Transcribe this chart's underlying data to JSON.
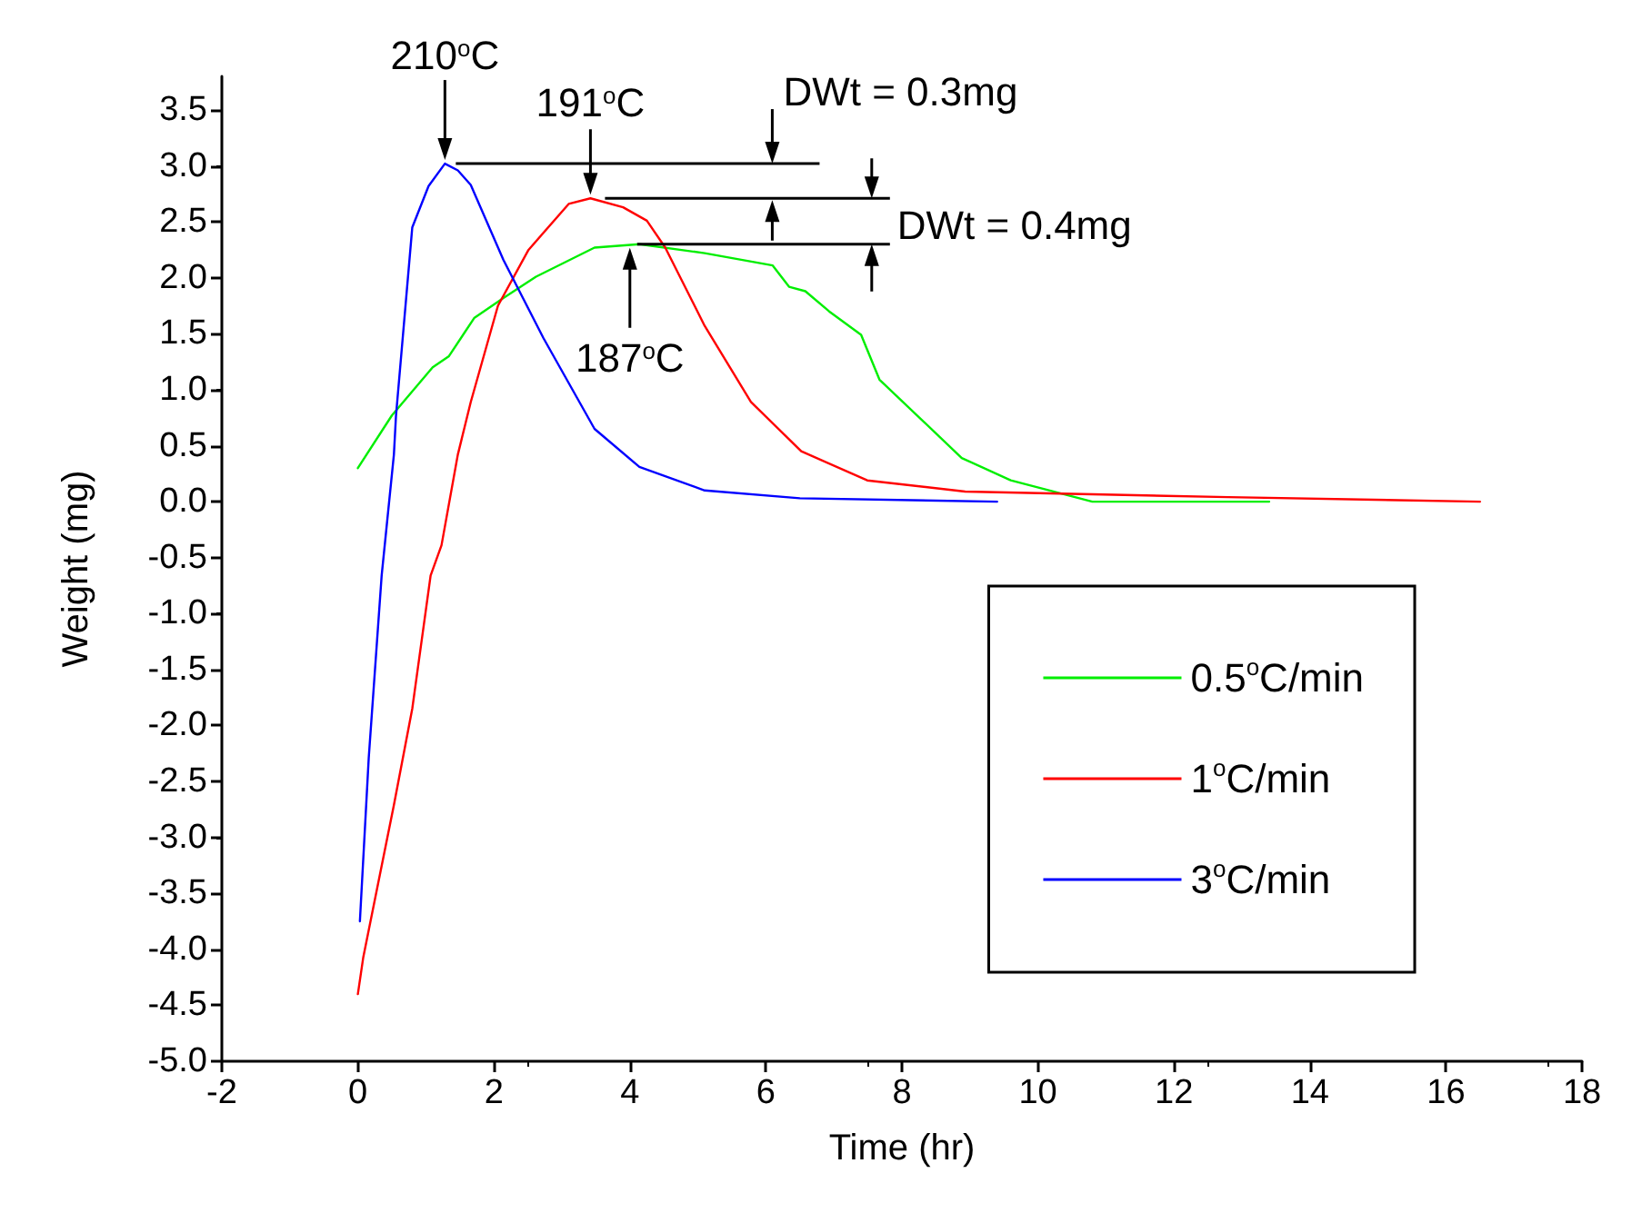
{
  "chart_data": {
    "type": "line",
    "xlabel": "Time (hr)",
    "ylabel": "Weight (mg)",
    "xlim": [
      -2,
      18
    ],
    "xticks": [
      -2,
      0,
      2,
      4,
      6,
      8,
      10,
      12,
      14,
      16,
      18
    ],
    "ylim": [
      -5,
      3.8
    ],
    "yticks": [
      {
        "value": -5,
        "label": "-5.0"
      },
      -4.5,
      {
        "value": -4,
        "label": "-4.0"
      },
      -3.5,
      {
        "value": -3,
        "label": "-3.0"
      },
      -2.5,
      {
        "value": -2,
        "label": "-2.0"
      },
      -1.5,
      {
        "value": -1,
        "label": "-1.0"
      },
      -0.5,
      {
        "value": 0,
        "label": "0.0"
      },
      0.5,
      {
        "value": 1,
        "label": "1.0"
      },
      1.5,
      {
        "value": 2,
        "label": "2.0"
      },
      2.5,
      {
        "value": 3,
        "label": "3.0"
      },
      3.5
    ],
    "grid": false,
    "legend": "bottom right",
    "marker": "none",
    "line_style": "solid",
    "series": [
      {
        "name": "0.5$^{o}$C/min",
        "color": "#00ee00",
        "x": [
          0,
          0.5,
          1.1,
          1.34,
          1.71,
          2.14,
          2.62,
          3.48,
          4.14,
          5.1,
          6.1,
          6.34,
          6.58,
          6.93,
          7.4,
          7.67,
          8.88,
          9.6,
          10.8,
          13.4
        ],
        "values": [
          0.3,
          0.77,
          1.2,
          1.3,
          1.64,
          1.82,
          2.01,
          2.27,
          2.3,
          2.22,
          2.11,
          1.92,
          1.88,
          1.7,
          1.49,
          1.09,
          0.39,
          0.19,
          0,
          0
        ]
      },
      {
        "name": "1$^{o}$C/min",
        "color": "#ff0000",
        "x": [
          0,
          0.08,
          0.53,
          0.8,
          1.07,
          1.23,
          1.47,
          1.66,
          2.06,
          2.51,
          3.1,
          3.42,
          3.9,
          4.25,
          4.52,
          5.1,
          5.78,
          6.52,
          7.49,
          8.93,
          12.8,
          16.5
        ],
        "values": [
          -4.4,
          -4.07,
          -2.71,
          -1.85,
          -0.66,
          -0.39,
          0.42,
          0.89,
          1.75,
          2.25,
          2.66,
          2.71,
          2.63,
          2.51,
          2.27,
          1.57,
          0.89,
          0.45,
          0.19,
          0.09,
          0.04,
          0
        ]
      },
      {
        "name": "3$^{o}$C/min",
        "color": "#0000ff",
        "x": [
          0.03,
          0.16,
          0.35,
          0.53,
          0.56,
          0.8,
          1.04,
          1.28,
          1.47,
          1.66,
          2.14,
          2.73,
          3.48,
          4.14,
          5.1,
          6.5,
          9.4
        ],
        "values": [
          -3.75,
          -2.29,
          -0.66,
          0.42,
          0.76,
          2.45,
          2.82,
          3.02,
          2.96,
          2.83,
          2.16,
          1.46,
          0.65,
          0.31,
          0.1,
          0.03,
          0
        ]
      }
    ],
    "annotations": [
      {
        "text": "210$^{o}$C",
        "x": 1.28,
        "y": 3.02
      },
      {
        "text": "191$^{o}$C",
        "x": 3.42,
        "y": 2.71
      },
      {
        "text": "187$^{o}$C",
        "x": 4.0,
        "y": 2.3
      },
      {
        "text": "DWt = 0.3mg",
        "x": 1.28,
        "y": 3.02
      },
      {
        "text": "DWt = 0.4mg",
        "x": 4.0,
        "y": 2.3
      }
    ]
  }
}
